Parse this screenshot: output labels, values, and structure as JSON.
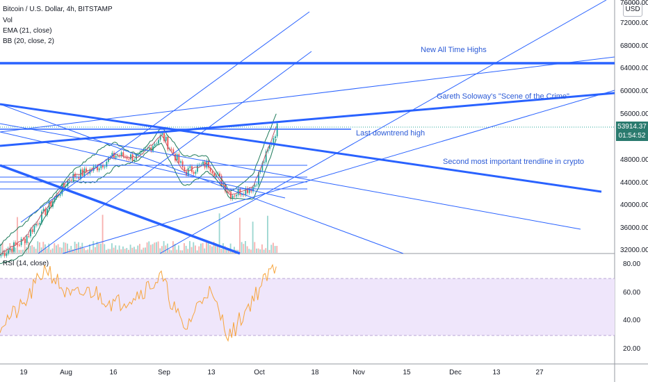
{
  "header": {
    "symbol": "Bitcoin / U.S. Dollar, 4h, BITSTAMP",
    "indicators": [
      "Vol",
      "EMA (21, close)",
      "BB (20, close, 2)"
    ],
    "rsi_label": "RSI (14, close)"
  },
  "currency": "USD",
  "current_price": "53914.37",
  "countdown": "01:54:52",
  "annotations": {
    "ath": "New All Time Highs",
    "soloway": "Gareth Soloway's \"Scene of the Crime\"",
    "downtrend_high": "Last downtrend high",
    "trendline": "Second most important trendline in crypto"
  },
  "colors": {
    "line_blue": "#2962ff",
    "bb_green": "#1e7a5a",
    "candle_up": "#26a69a",
    "candle_down": "#ef5350",
    "rsi": "#f7a43b",
    "rsi_band": "#efe6fb"
  },
  "price_axis_labels": [
    "76000.00",
    "72000.00",
    "68000.00",
    "64000.00",
    "60000.00",
    "56000.00",
    "48000.00",
    "44000.00",
    "40000.00",
    "36000.00",
    "32000.00"
  ],
  "rsi_axis_labels": [
    "80.00",
    "60.00",
    "40.00",
    "20.00"
  ],
  "time_axis_labels": [
    "19",
    "Aug",
    "16",
    "Sep",
    "13",
    "Oct",
    "18",
    "Nov",
    "15",
    "Dec",
    "13",
    "27"
  ],
  "chart_data": {
    "type": "line",
    "series": [
      {
        "x": [
          "Jul 19",
          "Jul 26",
          "Aug 2",
          "Aug 9",
          "Aug 16",
          "Aug 23",
          "Aug 30",
          "Sep 6",
          "Sep 13",
          "Sep 20",
          "Sep 27",
          "Oct 1",
          "Oct 4"
        ],
        "values": [
          31500,
          34000,
          39500,
          45000,
          46500,
          49000,
          48500,
          52500,
          46000,
          47500,
          42000,
          43500,
          53900
        ]
      },
      {
        "name": "RSI (14, close)",
        "x": [
          "Jul 19",
          "Jul 26",
          "Aug 2",
          "Aug 9",
          "Aug 16",
          "Aug 23",
          "Aug 30",
          "Sep 6",
          "Sep 13",
          "Sep 20",
          "Sep 27",
          "Oct 1",
          "Oct 4"
        ],
        "values": [
          35,
          48,
          78,
          55,
          60,
          50,
          58,
          70,
          30,
          62,
          26,
          55,
          80
        ]
      }
    ],
    "price_ylim": [
      32000,
      76000
    ],
    "rsi_ylim": [
      20,
      80
    ],
    "rsi_band": [
      30,
      70
    ],
    "horizontal_levels": [
      65000,
      52500,
      47000,
      45000,
      43500
    ],
    "current_price": 53914.37
  }
}
